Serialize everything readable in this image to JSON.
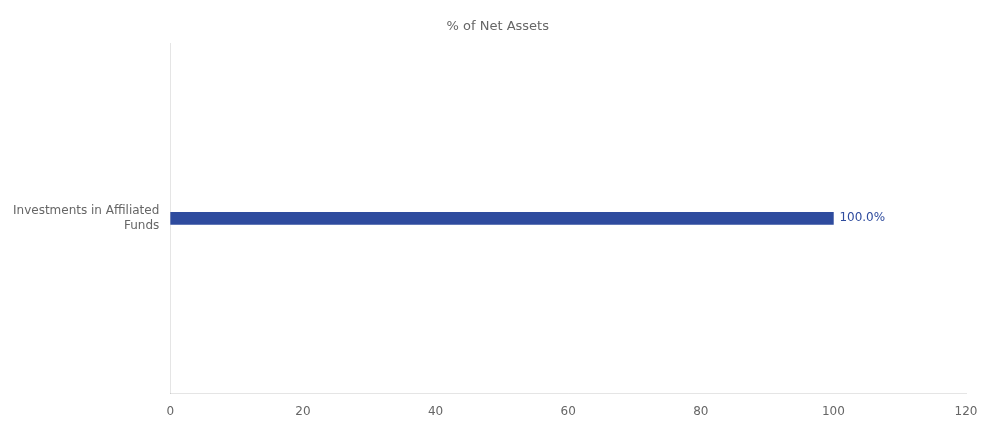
{
  "chart_data": {
    "type": "bar",
    "orientation": "horizontal",
    "categories": [
      "Investments in Affiliated\nFunds"
    ],
    "series": [
      {
        "name": "% of Net Assets",
        "color": "#2e4b9e",
        "values": [
          100.0
        ],
        "value_labels": [
          "100.0%"
        ]
      }
    ],
    "data_labels": true,
    "xlim": [
      0,
      120
    ],
    "xticks": [
      0,
      20,
      40,
      60,
      80,
      100,
      120
    ],
    "grid": false,
    "legend": "top"
  }
}
